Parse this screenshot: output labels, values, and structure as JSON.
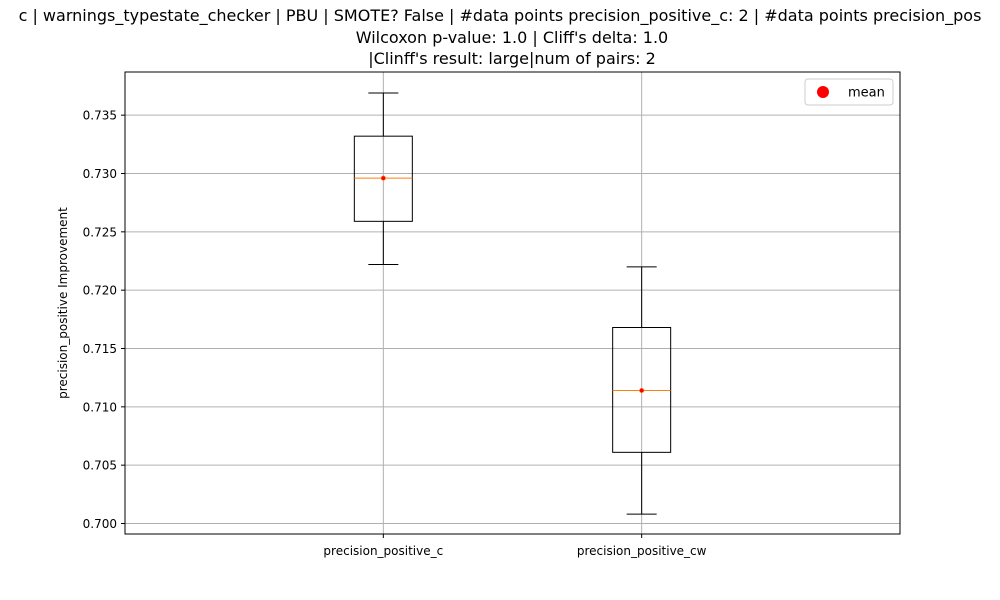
{
  "chart_data": {
    "type": "boxplot",
    "title_lines": [
      "c | warnings_typestate_checker | PBU | SMOTE? False | #data points precision_positive_c: 2 | #data points precision_pos",
      "Wilcoxon p-value: 1.0 | Cliff's delta: 1.0",
      "|Clinff's result: large|num of pairs: 2"
    ],
    "xlabel": "",
    "ylabel": "precision_positive Improvement",
    "ylim": [
      0.6991,
      0.7387
    ],
    "yticks": [
      0.7,
      0.705,
      0.71,
      0.715,
      0.72,
      0.725,
      0.73,
      0.735
    ],
    "ytick_labels": [
      "0.700",
      "0.705",
      "0.710",
      "0.715",
      "0.720",
      "0.725",
      "0.730",
      "0.735"
    ],
    "categories": [
      "precision_positive_c",
      "precision_positive_cw"
    ],
    "boxes": [
      {
        "label": "precision_positive_c",
        "whisker_low": 0.7222,
        "q1": 0.7259,
        "median": 0.7296,
        "q3": 0.7332,
        "whisker_high": 0.7369,
        "mean": 0.7296
      },
      {
        "label": "precision_positive_cw",
        "whisker_low": 0.7008,
        "q1": 0.7061,
        "median": 0.7114,
        "q3": 0.7168,
        "whisker_high": 0.722,
        "mean": 0.7114
      }
    ],
    "legend": {
      "entries": [
        "mean"
      ],
      "placement": "top-right"
    },
    "grid": true,
    "colors": {
      "box": "#000000",
      "median": "#ff7f0e",
      "mean": "#ff0000",
      "grid": "#b0b0b0"
    }
  }
}
